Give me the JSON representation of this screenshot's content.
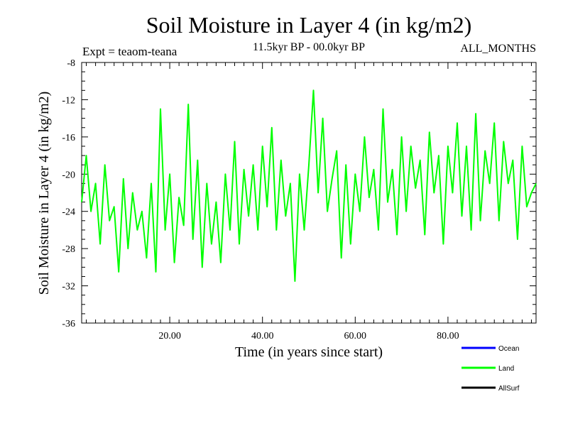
{
  "chart_data": {
    "type": "line",
    "title": "Soil Moisture in Layer 4 (in kg/m2)",
    "subtitle": "11.5kyr BP - 00.0kyr BP",
    "experiment": "Expt = teaom-teana",
    "period": "ALL_MONTHS",
    "xlabel": "Time (in years since start)",
    "ylabel": "Soil Moisture in Layer 4 (in kg/m2)",
    "xlim": [
      1,
      99
    ],
    "ylim": [
      -36,
      -8
    ],
    "x_ticks": [
      20,
      40,
      60,
      80
    ],
    "x_tick_labels": [
      "20.00",
      "40.00",
      "60.00",
      "80.00"
    ],
    "y_ticks": [
      -36,
      -32,
      -28,
      -24,
      -20,
      -16,
      -12,
      -8
    ],
    "y_tick_labels": [
      "-36",
      "-32",
      "-28",
      "-24",
      "-20",
      "-16",
      "-12",
      "-8"
    ],
    "grid": false,
    "legend": [
      "Ocean",
      "Land",
      "AllSurf"
    ],
    "legend_colors": [
      "#0000ff",
      "#00ff00",
      "#000000"
    ],
    "series": [
      {
        "name": "Land",
        "color": "#00ff00",
        "x": [
          1,
          2,
          3,
          4,
          5,
          6,
          7,
          8,
          9,
          10,
          11,
          12,
          13,
          14,
          15,
          16,
          17,
          18,
          19,
          20,
          21,
          22,
          23,
          24,
          25,
          26,
          27,
          28,
          29,
          30,
          31,
          32,
          33,
          34,
          35,
          36,
          37,
          38,
          39,
          40,
          41,
          42,
          43,
          44,
          45,
          46,
          47,
          48,
          49,
          50,
          51,
          52,
          53,
          54,
          55,
          56,
          57,
          58,
          59,
          60,
          61,
          62,
          63,
          64,
          65,
          66,
          67,
          68,
          69,
          70,
          71,
          72,
          73,
          74,
          75,
          76,
          77,
          78,
          79,
          80,
          81,
          82,
          83,
          84,
          85,
          86,
          87,
          88,
          89,
          90,
          91,
          92,
          93,
          94,
          95,
          96,
          97,
          98,
          99
        ],
        "values": [
          -23.0,
          -18.0,
          -24.0,
          -21.0,
          -27.5,
          -19.0,
          -25.0,
          -23.5,
          -30.5,
          -20.5,
          -28.0,
          -22.0,
          -26.0,
          -24.0,
          -29.0,
          -21.0,
          -30.5,
          -13.0,
          -26.0,
          -20.0,
          -29.5,
          -22.5,
          -25.5,
          -12.5,
          -27.0,
          -18.5,
          -30.0,
          -21.0,
          -27.5,
          -23.0,
          -29.5,
          -20.0,
          -26.0,
          -16.5,
          -27.5,
          -19.5,
          -24.5,
          -19.0,
          -26.0,
          -17.0,
          -23.5,
          -15.0,
          -26.0,
          -18.5,
          -24.5,
          -21.0,
          -31.5,
          -20.0,
          -26.0,
          -19.0,
          -11.0,
          -22.0,
          -14.0,
          -24.0,
          -20.5,
          -17.5,
          -29.0,
          -19.0,
          -27.5,
          -20.0,
          -24.0,
          -16.0,
          -22.5,
          -19.5,
          -26.0,
          -13.0,
          -23.0,
          -19.5,
          -26.5,
          -16.0,
          -24.0,
          -17.0,
          -21.5,
          -18.5,
          -26.5,
          -15.5,
          -22.0,
          -18.0,
          -27.5,
          -17.0,
          -22.0,
          -14.5,
          -24.5,
          -17.0,
          -26.0,
          -13.5,
          -25.0,
          -17.5,
          -21.0,
          -14.5,
          -25.0,
          -16.5,
          -21.0,
          -18.5,
          -27.0,
          -17.0,
          -23.5,
          -22.0,
          -21.0
        ]
      }
    ]
  }
}
